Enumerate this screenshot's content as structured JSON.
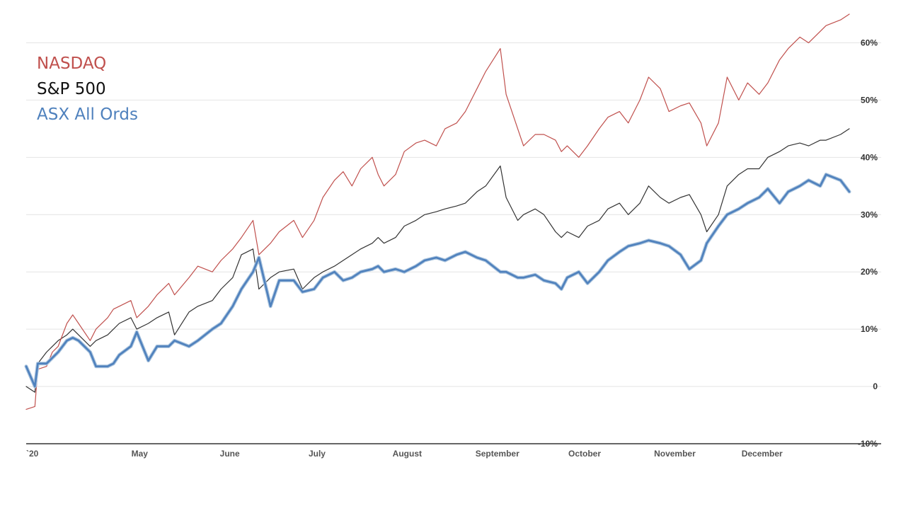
{
  "chart_data": {
    "type": "line",
    "title": "",
    "xlabel": "",
    "ylabel": "",
    "y_unit": "%",
    "ylim": [
      -10,
      65
    ],
    "xlim": [
      "2020-03-23",
      "2020-12-31"
    ],
    "grid": {
      "horizontal": true,
      "vertical": false
    },
    "legend_position": "top-left",
    "y_ticks": [
      {
        "value": -10,
        "label": "-10%"
      },
      {
        "value": 0,
        "label": "0"
      },
      {
        "value": 10,
        "label": "10%"
      },
      {
        "value": 20,
        "label": "20%"
      },
      {
        "value": 30,
        "label": "30%"
      },
      {
        "value": 40,
        "label": "40%"
      },
      {
        "value": 50,
        "label": "50%"
      },
      {
        "value": 60,
        "label": "60%"
      }
    ],
    "x_ticks": [
      {
        "date": "2020-03-23",
        "label": "`20"
      },
      {
        "date": "2020-05-01",
        "label": "May"
      },
      {
        "date": "2020-06-01",
        "label": "June"
      },
      {
        "date": "2020-07-01",
        "label": "July"
      },
      {
        "date": "2020-08-01",
        "label": "August"
      },
      {
        "date": "2020-09-01",
        "label": "September"
      },
      {
        "date": "2020-10-01",
        "label": "October"
      },
      {
        "date": "2020-11-01",
        "label": "November"
      },
      {
        "date": "2020-12-01",
        "label": "December"
      }
    ],
    "series": [
      {
        "name": "NASDAQ",
        "color": "#c0504d",
        "points": [
          [
            "2020-03-23",
            -4
          ],
          [
            "2020-03-26",
            -3.5
          ],
          [
            "2020-03-27",
            3
          ],
          [
            "2020-03-30",
            3.5
          ],
          [
            "2020-04-01",
            6
          ],
          [
            "2020-04-03",
            7
          ],
          [
            "2020-04-06",
            11
          ],
          [
            "2020-04-08",
            12.5
          ],
          [
            "2020-04-10",
            11
          ],
          [
            "2020-04-14",
            8
          ],
          [
            "2020-04-16",
            10
          ],
          [
            "2020-04-20",
            12
          ],
          [
            "2020-04-22",
            13.5
          ],
          [
            "2020-04-24",
            14
          ],
          [
            "2020-04-28",
            15
          ],
          [
            "2020-04-30",
            12
          ],
          [
            "2020-05-04",
            14
          ],
          [
            "2020-05-07",
            16
          ],
          [
            "2020-05-11",
            18
          ],
          [
            "2020-05-13",
            16
          ],
          [
            "2020-05-18",
            19
          ],
          [
            "2020-05-21",
            21
          ],
          [
            "2020-05-26",
            20
          ],
          [
            "2020-05-29",
            22
          ],
          [
            "2020-06-02",
            24
          ],
          [
            "2020-06-05",
            26
          ],
          [
            "2020-06-09",
            29
          ],
          [
            "2020-06-11",
            23
          ],
          [
            "2020-06-15",
            25
          ],
          [
            "2020-06-18",
            27
          ],
          [
            "2020-06-23",
            29
          ],
          [
            "2020-06-26",
            26
          ],
          [
            "2020-06-30",
            29
          ],
          [
            "2020-07-03",
            33
          ],
          [
            "2020-07-07",
            36
          ],
          [
            "2020-07-10",
            37.5
          ],
          [
            "2020-07-13",
            35
          ],
          [
            "2020-07-16",
            38
          ],
          [
            "2020-07-20",
            40
          ],
          [
            "2020-07-22",
            37
          ],
          [
            "2020-07-24",
            35
          ],
          [
            "2020-07-28",
            37
          ],
          [
            "2020-07-31",
            41
          ],
          [
            "2020-08-04",
            42.5
          ],
          [
            "2020-08-07",
            43
          ],
          [
            "2020-08-11",
            42
          ],
          [
            "2020-08-14",
            45
          ],
          [
            "2020-08-18",
            46
          ],
          [
            "2020-08-21",
            48
          ],
          [
            "2020-08-25",
            52
          ],
          [
            "2020-08-28",
            55
          ],
          [
            "2020-09-02",
            59
          ],
          [
            "2020-09-04",
            51
          ],
          [
            "2020-09-08",
            45
          ],
          [
            "2020-09-10",
            42
          ],
          [
            "2020-09-14",
            44
          ],
          [
            "2020-09-17",
            44
          ],
          [
            "2020-09-21",
            43
          ],
          [
            "2020-09-23",
            41
          ],
          [
            "2020-09-25",
            42
          ],
          [
            "2020-09-29",
            40
          ],
          [
            "2020-10-02",
            42
          ],
          [
            "2020-10-06",
            45
          ],
          [
            "2020-10-09",
            47
          ],
          [
            "2020-10-13",
            48
          ],
          [
            "2020-10-16",
            46
          ],
          [
            "2020-10-20",
            50
          ],
          [
            "2020-10-23",
            54
          ],
          [
            "2020-10-27",
            52
          ],
          [
            "2020-10-30",
            48
          ],
          [
            "2020-11-03",
            49
          ],
          [
            "2020-11-06",
            49.5
          ],
          [
            "2020-11-10",
            46
          ],
          [
            "2020-11-12",
            42
          ],
          [
            "2020-11-16",
            46
          ],
          [
            "2020-11-19",
            54
          ],
          [
            "2020-11-23",
            50
          ],
          [
            "2020-11-26",
            53
          ],
          [
            "2020-11-30",
            51
          ],
          [
            "2020-12-03",
            53
          ],
          [
            "2020-12-07",
            57
          ],
          [
            "2020-12-10",
            59
          ],
          [
            "2020-12-14",
            61
          ],
          [
            "2020-12-17",
            60
          ],
          [
            "2020-12-21",
            62
          ],
          [
            "2020-12-23",
            63
          ],
          [
            "2020-12-28",
            64
          ],
          [
            "2020-12-31",
            65
          ]
        ]
      },
      {
        "name": "S&P 500",
        "color": "#333333",
        "points": [
          [
            "2020-03-23",
            0
          ],
          [
            "2020-03-26",
            -1
          ],
          [
            "2020-03-27",
            4
          ],
          [
            "2020-03-30",
            6
          ],
          [
            "2020-04-01",
            7
          ],
          [
            "2020-04-03",
            8
          ],
          [
            "2020-04-06",
            9
          ],
          [
            "2020-04-08",
            10
          ],
          [
            "2020-04-10",
            9
          ],
          [
            "2020-04-14",
            7
          ],
          [
            "2020-04-16",
            8
          ],
          [
            "2020-04-20",
            9
          ],
          [
            "2020-04-22",
            10
          ],
          [
            "2020-04-24",
            11
          ],
          [
            "2020-04-28",
            12
          ],
          [
            "2020-04-30",
            10
          ],
          [
            "2020-05-04",
            11
          ],
          [
            "2020-05-07",
            12
          ],
          [
            "2020-05-11",
            13
          ],
          [
            "2020-05-13",
            9
          ],
          [
            "2020-05-18",
            13
          ],
          [
            "2020-05-21",
            14
          ],
          [
            "2020-05-26",
            15
          ],
          [
            "2020-05-29",
            17
          ],
          [
            "2020-06-02",
            19
          ],
          [
            "2020-06-05",
            23
          ],
          [
            "2020-06-09",
            24
          ],
          [
            "2020-06-11",
            17
          ],
          [
            "2020-06-15",
            19
          ],
          [
            "2020-06-18",
            20
          ],
          [
            "2020-06-23",
            20.5
          ],
          [
            "2020-06-26",
            17
          ],
          [
            "2020-06-30",
            19
          ],
          [
            "2020-07-03",
            20
          ],
          [
            "2020-07-07",
            21
          ],
          [
            "2020-07-10",
            22
          ],
          [
            "2020-07-13",
            23
          ],
          [
            "2020-07-16",
            24
          ],
          [
            "2020-07-20",
            25
          ],
          [
            "2020-07-22",
            26
          ],
          [
            "2020-07-24",
            25
          ],
          [
            "2020-07-28",
            26
          ],
          [
            "2020-07-31",
            28
          ],
          [
            "2020-08-04",
            29
          ],
          [
            "2020-08-07",
            30
          ],
          [
            "2020-08-11",
            30.5
          ],
          [
            "2020-08-14",
            31
          ],
          [
            "2020-08-18",
            31.5
          ],
          [
            "2020-08-21",
            32
          ],
          [
            "2020-08-25",
            34
          ],
          [
            "2020-08-28",
            35
          ],
          [
            "2020-09-02",
            38.5
          ],
          [
            "2020-09-04",
            33
          ],
          [
            "2020-09-08",
            29
          ],
          [
            "2020-09-10",
            30
          ],
          [
            "2020-09-14",
            31
          ],
          [
            "2020-09-17",
            30
          ],
          [
            "2020-09-21",
            27
          ],
          [
            "2020-09-23",
            26
          ],
          [
            "2020-09-25",
            27
          ],
          [
            "2020-09-29",
            26
          ],
          [
            "2020-10-02",
            28
          ],
          [
            "2020-10-06",
            29
          ],
          [
            "2020-10-09",
            31
          ],
          [
            "2020-10-13",
            32
          ],
          [
            "2020-10-16",
            30
          ],
          [
            "2020-10-20",
            32
          ],
          [
            "2020-10-23",
            35
          ],
          [
            "2020-10-27",
            33
          ],
          [
            "2020-10-30",
            32
          ],
          [
            "2020-11-03",
            33
          ],
          [
            "2020-11-06",
            33.5
          ],
          [
            "2020-11-10",
            30
          ],
          [
            "2020-11-12",
            27
          ],
          [
            "2020-11-16",
            30
          ],
          [
            "2020-11-19",
            35
          ],
          [
            "2020-11-23",
            37
          ],
          [
            "2020-11-26",
            38
          ],
          [
            "2020-11-30",
            38
          ],
          [
            "2020-12-03",
            40
          ],
          [
            "2020-12-07",
            41
          ],
          [
            "2020-12-10",
            42
          ],
          [
            "2020-12-14",
            42.5
          ],
          [
            "2020-12-17",
            42
          ],
          [
            "2020-12-21",
            43
          ],
          [
            "2020-12-23",
            43
          ],
          [
            "2020-12-28",
            44
          ],
          [
            "2020-12-31",
            45
          ]
        ]
      },
      {
        "name": "ASX All Ords",
        "color": "#4f81bd",
        "points": [
          [
            "2020-03-23",
            3.5
          ],
          [
            "2020-03-26",
            0
          ],
          [
            "2020-03-27",
            4
          ],
          [
            "2020-03-30",
            4
          ],
          [
            "2020-04-01",
            5
          ],
          [
            "2020-04-03",
            6
          ],
          [
            "2020-04-06",
            8
          ],
          [
            "2020-04-08",
            8.5
          ],
          [
            "2020-04-10",
            8
          ],
          [
            "2020-04-14",
            6
          ],
          [
            "2020-04-16",
            3.5
          ],
          [
            "2020-04-20",
            3.5
          ],
          [
            "2020-04-22",
            4
          ],
          [
            "2020-04-24",
            5.5
          ],
          [
            "2020-04-28",
            7
          ],
          [
            "2020-04-30",
            9.5
          ],
          [
            "2020-05-04",
            4.5
          ],
          [
            "2020-05-07",
            7
          ],
          [
            "2020-05-11",
            7
          ],
          [
            "2020-05-13",
            8
          ],
          [
            "2020-05-18",
            7
          ],
          [
            "2020-05-21",
            8
          ],
          [
            "2020-05-26",
            10
          ],
          [
            "2020-05-29",
            11
          ],
          [
            "2020-06-02",
            14
          ],
          [
            "2020-06-05",
            17
          ],
          [
            "2020-06-09",
            20
          ],
          [
            "2020-06-11",
            22.5
          ],
          [
            "2020-06-15",
            14
          ],
          [
            "2020-06-18",
            18.5
          ],
          [
            "2020-06-23",
            18.5
          ],
          [
            "2020-06-26",
            16.5
          ],
          [
            "2020-06-30",
            17
          ],
          [
            "2020-07-03",
            19
          ],
          [
            "2020-07-07",
            20
          ],
          [
            "2020-07-10",
            18.5
          ],
          [
            "2020-07-13",
            19
          ],
          [
            "2020-07-16",
            20
          ],
          [
            "2020-07-20",
            20.5
          ],
          [
            "2020-07-22",
            21
          ],
          [
            "2020-07-24",
            20
          ],
          [
            "2020-07-28",
            20.5
          ],
          [
            "2020-07-31",
            20
          ],
          [
            "2020-08-04",
            21
          ],
          [
            "2020-08-07",
            22
          ],
          [
            "2020-08-11",
            22.5
          ],
          [
            "2020-08-14",
            22
          ],
          [
            "2020-08-18",
            23
          ],
          [
            "2020-08-21",
            23.5
          ],
          [
            "2020-08-25",
            22.5
          ],
          [
            "2020-08-28",
            22
          ],
          [
            "2020-09-02",
            20
          ],
          [
            "2020-09-04",
            20
          ],
          [
            "2020-09-08",
            19
          ],
          [
            "2020-09-10",
            19
          ],
          [
            "2020-09-14",
            19.5
          ],
          [
            "2020-09-17",
            18.5
          ],
          [
            "2020-09-21",
            18
          ],
          [
            "2020-09-23",
            17
          ],
          [
            "2020-09-25",
            19
          ],
          [
            "2020-09-29",
            20
          ],
          [
            "2020-10-02",
            18
          ],
          [
            "2020-10-06",
            20
          ],
          [
            "2020-10-09",
            22
          ],
          [
            "2020-10-13",
            23.5
          ],
          [
            "2020-10-16",
            24.5
          ],
          [
            "2020-10-20",
            25
          ],
          [
            "2020-10-23",
            25.5
          ],
          [
            "2020-10-27",
            25
          ],
          [
            "2020-10-30",
            24.5
          ],
          [
            "2020-11-03",
            23
          ],
          [
            "2020-11-06",
            20.5
          ],
          [
            "2020-11-10",
            22
          ],
          [
            "2020-11-12",
            25
          ],
          [
            "2020-11-16",
            28
          ],
          [
            "2020-11-19",
            30
          ],
          [
            "2020-11-23",
            31
          ],
          [
            "2020-11-26",
            32
          ],
          [
            "2020-11-30",
            33
          ],
          [
            "2020-12-03",
            34.5
          ],
          [
            "2020-12-07",
            32
          ],
          [
            "2020-12-10",
            34
          ],
          [
            "2020-12-14",
            35
          ],
          [
            "2020-12-17",
            36
          ],
          [
            "2020-12-21",
            35
          ],
          [
            "2020-12-23",
            37
          ],
          [
            "2020-12-28",
            36
          ],
          [
            "2020-12-31",
            34
          ]
        ]
      }
    ]
  }
}
